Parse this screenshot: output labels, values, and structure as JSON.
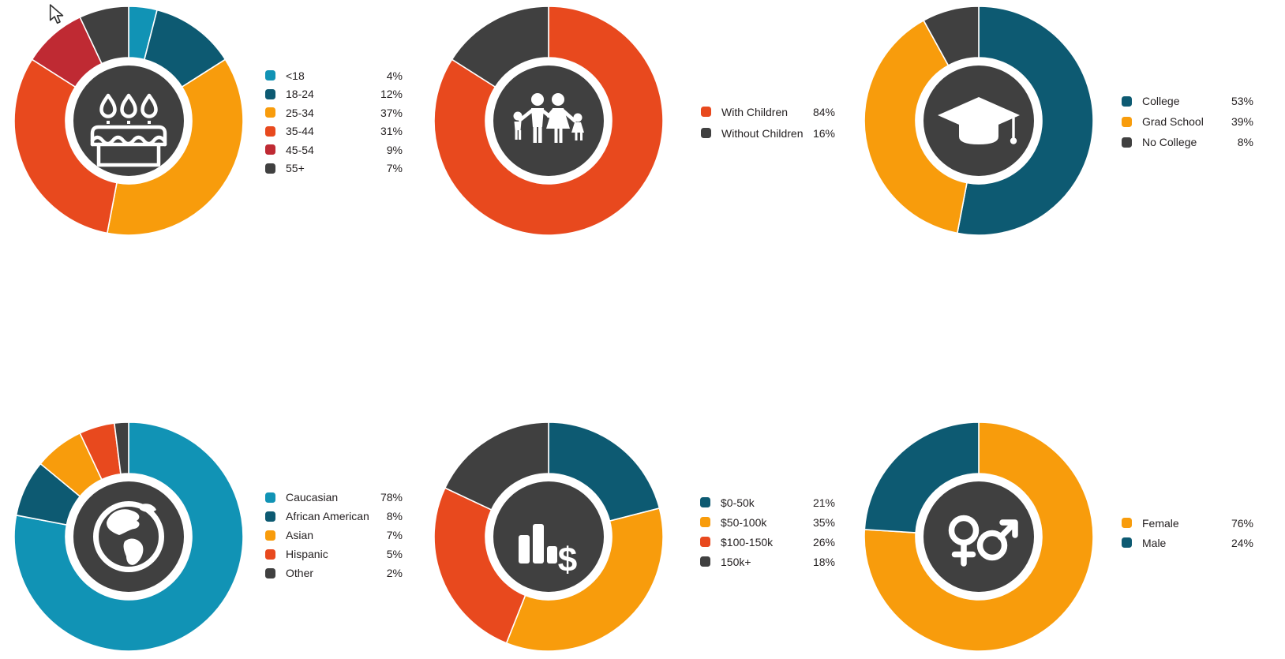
{
  "canvas": {
    "background": "#FFFFFF",
    "cursor": "arrow-pointer"
  },
  "palette": {
    "light_blue": "#1193B5",
    "dark_teal": "#0D5A72",
    "orange": "#F89C0C",
    "red_orange": "#E8491E",
    "crimson": "#BF2A33",
    "dark_gray": "#404040",
    "icon_color": "#FFFFFF",
    "text_color": "#231F20"
  },
  "chart_data": [
    {
      "type": "pie",
      "icon": "birthday-cake-icon",
      "legend_position": "right",
      "start_angle": 0,
      "direction": "clockwise",
      "donut_hole_ratio": 0.55,
      "labels": [
        "<18",
        "18-24",
        "25-34",
        "35-44",
        "45-54",
        "55+"
      ],
      "values": [
        4,
        12,
        37,
        31,
        9,
        7
      ],
      "value_labels": [
        "4%",
        "12%",
        "37%",
        "31%",
        "9%",
        "7%"
      ],
      "colors": [
        "#1193B5",
        "#0D5A72",
        "#F89C0C",
        "#E8491E",
        "#BF2A33",
        "#404040"
      ]
    },
    {
      "type": "pie",
      "icon": "family-icon",
      "legend_position": "right",
      "start_angle": 0,
      "direction": "clockwise",
      "donut_hole_ratio": 0.55,
      "labels": [
        "With Children",
        "Without Children"
      ],
      "values": [
        84,
        16
      ],
      "value_labels": [
        "84%",
        "16%"
      ],
      "colors": [
        "#E8491E",
        "#404040"
      ]
    },
    {
      "type": "pie",
      "icon": "graduation-cap-icon",
      "legend_position": "right",
      "start_angle": 0,
      "direction": "clockwise",
      "donut_hole_ratio": 0.55,
      "labels": [
        "College",
        "Grad School",
        "No College"
      ],
      "values": [
        53,
        39,
        8
      ],
      "value_labels": [
        "53%",
        "39%",
        "8%"
      ],
      "colors": [
        "#0D5A72",
        "#F89C0C",
        "#404040"
      ]
    },
    {
      "type": "pie",
      "icon": "globe-icon",
      "legend_position": "right",
      "start_angle": 0,
      "direction": "clockwise",
      "donut_hole_ratio": 0.55,
      "labels": [
        "Caucasian",
        "African American",
        "Asian",
        "Hispanic",
        "Other"
      ],
      "values": [
        78,
        8,
        7,
        5,
        2
      ],
      "value_labels": [
        "78%",
        "8%",
        "7%",
        "5%",
        "2%"
      ],
      "colors": [
        "#1193B5",
        "#0D5A72",
        "#F89C0C",
        "#E8491E",
        "#404040"
      ]
    },
    {
      "type": "pie",
      "icon": "bar-chart-dollar-icon",
      "legend_position": "right",
      "start_angle": 0,
      "direction": "clockwise",
      "donut_hole_ratio": 0.55,
      "labels": [
        "$0-50k",
        "$50-100k",
        "$100-150k",
        "150k+"
      ],
      "values": [
        21,
        35,
        26,
        18
      ],
      "value_labels": [
        "21%",
        "35%",
        "26%",
        "18%"
      ],
      "colors": [
        "#0D5A72",
        "#F89C0C",
        "#E8491E",
        "#404040"
      ]
    },
    {
      "type": "pie",
      "icon": "gender-symbols-icon",
      "legend_position": "right",
      "start_angle": 0,
      "direction": "clockwise",
      "donut_hole_ratio": 0.55,
      "labels": [
        "Female",
        "Male"
      ],
      "values": [
        76,
        24
      ],
      "value_labels": [
        "76%",
        "24%"
      ],
      "colors": [
        "#F89C0C",
        "#0D5A72"
      ]
    }
  ]
}
